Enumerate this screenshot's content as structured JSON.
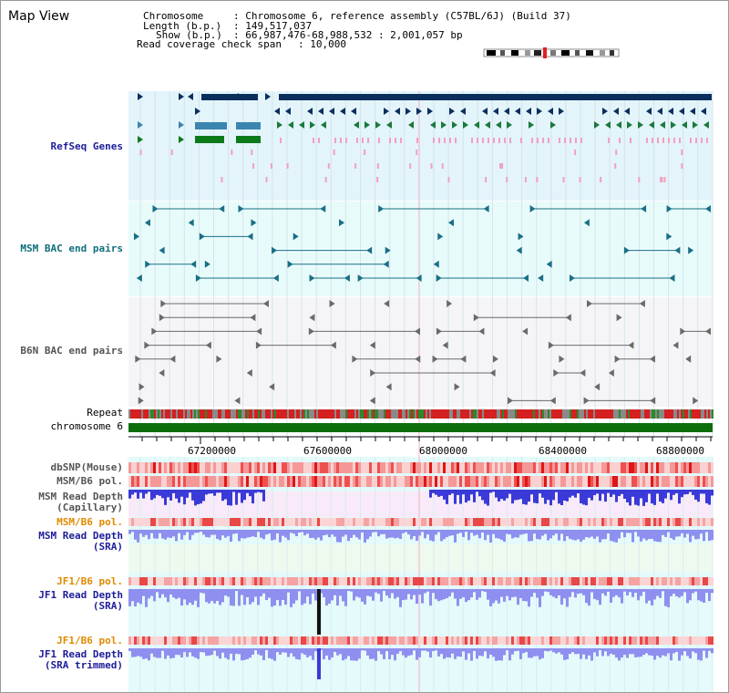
{
  "title": "Map View",
  "info": {
    "chromosome_label": "Chromosome",
    "chromosome_value": ": Chromosome 6, reference assembly (C57BL/6J) (Build 37)",
    "length_label": "Length (b.p.)",
    "length_value": ": 149,517,037",
    "show_label": "Show (b.p.)",
    "show_value": ": 66,987,476-68,988,532 : 2,001,057 bp",
    "coverage_label": "Read coverage check span",
    "coverage_value": ": 10,000"
  },
  "tracks": {
    "refseq": "RefSeq Genes",
    "msm_bac": "MSM BAC end pairs",
    "b6n_bac": "B6N BAC end pairs",
    "repeat": "Repeat",
    "chromosome": "chromosome 6",
    "dbsnp": "dbSNP(Mouse)",
    "msm_b6_pol": "MSM/B6 pol.",
    "msm_depth_cap_1": "MSM Read Depth",
    "msm_depth_cap_2": "(Capillary)",
    "msm_b6_pol_sra": "MSM/B6 pol.",
    "msm_depth_sra_1": "MSM Read Depth",
    "msm_depth_sra_2": "(SRA)",
    "jf1_b6_pol": "JF1/B6 pol.",
    "jf1_depth_1": "JF1 Read Depth",
    "jf1_depth_2": "(SRA)",
    "jf1_b6_pol_trim": "JF1/B6 pol.",
    "jf1_trim_1": "JF1 Read Depth",
    "jf1_trim_2": "(SRA trimmed)"
  },
  "axis": {
    "ticks": [
      "67200000",
      "67600000",
      "68000000",
      "68400000",
      "68800000"
    ]
  },
  "colors": {
    "gene_dark": "#0a2f5c",
    "gene_blue": "#3a86b0",
    "gene_green": "#0d7a1a",
    "pink": "#f3a0bd",
    "bac_teal": "#1a6f86",
    "bac_grey": "#555555",
    "chromosome_green": "#0b6e0b",
    "depth_blue": "#3a3ad8",
    "depth_light": "#8f8ff0"
  }
}
